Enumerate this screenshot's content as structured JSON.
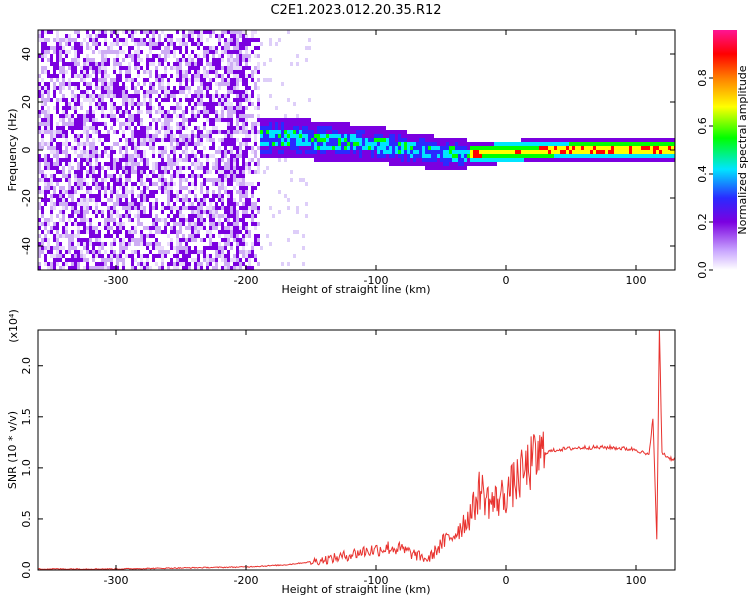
{
  "title": "C2E1.2023.012.20.35.R12",
  "colors": {
    "snr_line": "#e8322e",
    "colorbar": [
      "#ffffff",
      "#7b00e0",
      "#2a2aff",
      "#00e5ff",
      "#00ff00",
      "#ffff00",
      "#ff7f00",
      "#ff0000",
      "#ff1493"
    ]
  },
  "chart_data": [
    {
      "type": "heatmap",
      "title": "C2E1.2023.012.20.35.R12",
      "xlabel": "Height of straight line (km)",
      "ylabel": "Frequency (Hz)",
      "xlim": [
        -360,
        130
      ],
      "ylim": [
        -50,
        50
      ],
      "x_ticks": [
        -300,
        -200,
        -100,
        0,
        100
      ],
      "y_ticks": [
        40,
        20,
        0,
        -20,
        -40
      ],
      "colorbar": {
        "label": "Normalized spectral amplitude",
        "range": [
          0.0,
          1.0
        ],
        "ticks": [
          0.0,
          0.2,
          0.4,
          0.6,
          0.8
        ]
      },
      "features": {
        "noise_region_x": [
          -360,
          -190
        ],
        "signal_center_hz": [
          {
            "x": -190,
            "y": 6
          },
          {
            "x": -150,
            "y": 5
          },
          {
            "x": -100,
            "y": 3
          },
          {
            "x": -60,
            "y": 0
          },
          {
            "x": -40,
            "y": -1
          },
          {
            "x": 0,
            "y": 0
          },
          {
            "x": 50,
            "y": 1
          },
          {
            "x": 100,
            "y": 1
          },
          {
            "x": 130,
            "y": 1
          }
        ]
      }
    },
    {
      "type": "line",
      "xlabel": "Height of straight line (km)",
      "ylabel": "SNR (10 * v/v)",
      "y_multiplier": "(x10⁴)",
      "xlim": [
        -360,
        130
      ],
      "ylim": [
        0,
        2.35
      ],
      "x_ticks": [
        -300,
        -200,
        -100,
        0,
        100
      ],
      "y_ticks": [
        0.0,
        0.5,
        1.0,
        1.5,
        2.0
      ],
      "series": [
        {
          "x": [
            -360,
            -300,
            -250,
            -200,
            -170,
            -150,
            -130,
            -110,
            -100,
            -90,
            -80,
            -70,
            -60,
            -50,
            -40,
            -30,
            -25,
            -20,
            -15,
            -10,
            -5,
            0,
            10,
            20,
            30,
            40,
            60,
            80,
            100,
            105,
            110,
            113,
            116,
            118,
            120,
            125,
            130
          ],
          "y": [
            0.01,
            0.01,
            0.02,
            0.03,
            0.05,
            0.08,
            0.12,
            0.18,
            0.2,
            0.22,
            0.2,
            0.15,
            0.1,
            0.25,
            0.35,
            0.5,
            0.6,
            0.8,
            0.7,
            0.65,
            0.7,
            0.75,
            0.9,
            1.05,
            1.15,
            1.18,
            1.2,
            1.2,
            1.18,
            1.15,
            1.12,
            1.5,
            0.3,
            2.35,
            1.15,
            1.1,
            1.08
          ]
        }
      ]
    }
  ]
}
